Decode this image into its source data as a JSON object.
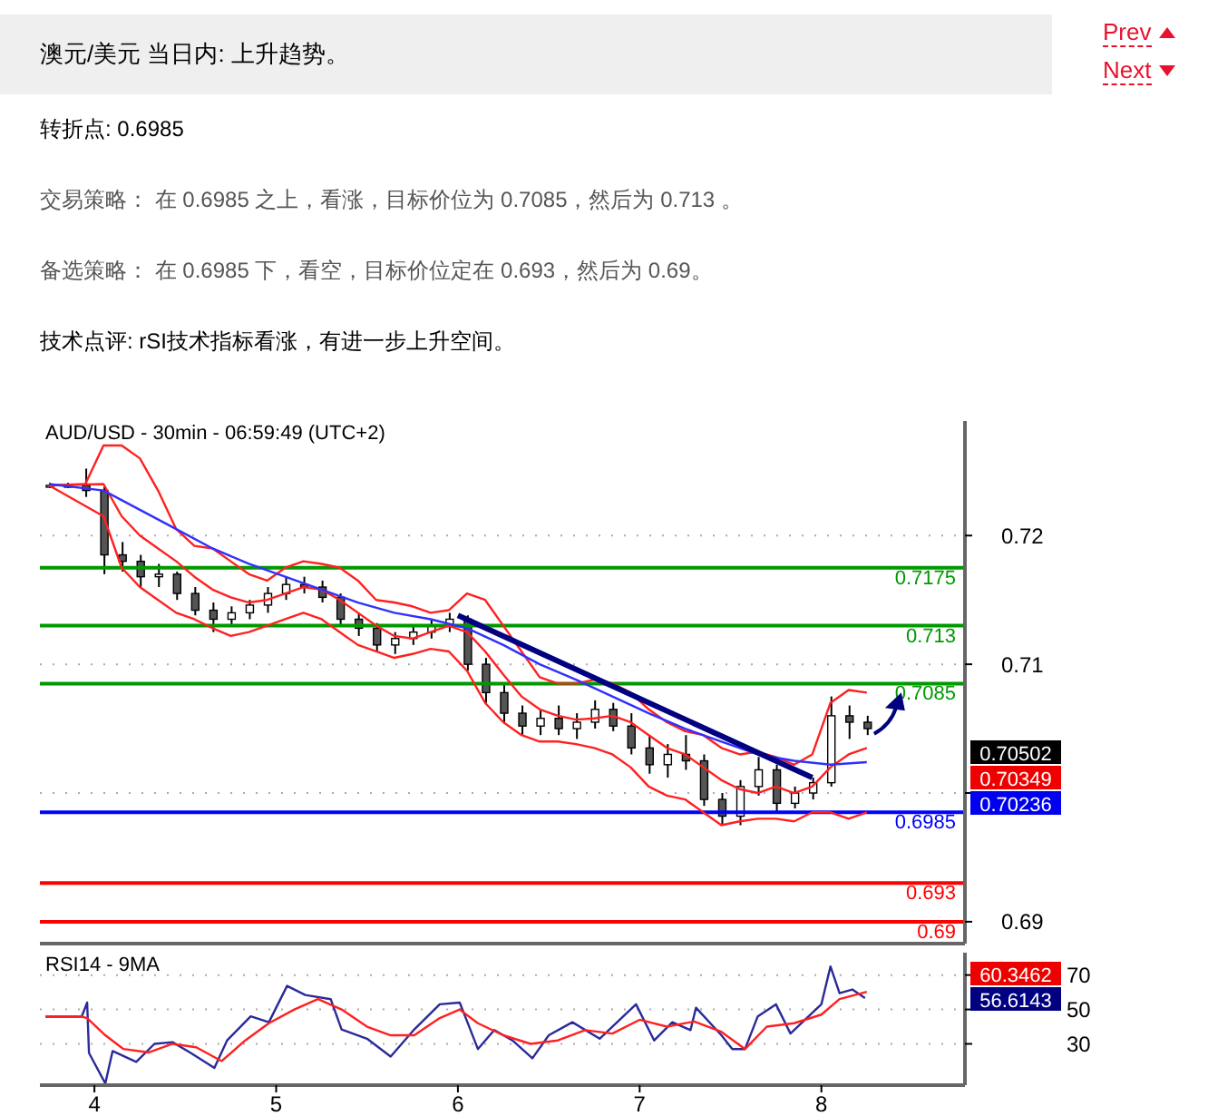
{
  "chart_data": [
    {
      "type": "candlestick",
      "title": "澳元/美元 当日内: 上升趋势。",
      "subtitle": "AUD/USD - 30min - 06:59:49 (UTC+2)",
      "annotations": [
        "Prev",
        "Next",
        "转折点: 0.6985",
        "交易策略： 在 0.6985 之上，看涨，目标价位为 0.7085，然后为 0.713 。",
        "备选策略： 在 0.6985 下，看空，目标价位定在 0.693，然后为 0.69。",
        "技术点评: rSI技术指标看涨，有进一步上升空间。",
        "0.70502",
        "0.70349",
        "0.70236"
      ],
      "x": [
        3.75,
        3.85,
        3.95,
        4.05,
        4.15,
        4.25,
        4.35,
        4.45,
        4.55,
        4.65,
        4.75,
        4.85,
        4.95,
        5.05,
        5.15,
        5.25,
        5.35,
        5.45,
        5.55,
        5.65,
        5.75,
        5.85,
        5.95,
        6.05,
        6.15,
        6.25,
        6.35,
        6.45,
        6.55,
        6.65,
        6.75,
        6.85,
        6.95,
        7.05,
        7.15,
        7.25,
        7.35,
        7.45,
        7.55,
        7.65,
        7.75,
        7.85,
        7.95,
        8.05,
        8.15,
        8.25
      ],
      "ohlc": [
        [
          0.7239,
          0.7241,
          0.7237,
          0.7239
        ],
        [
          0.7239,
          0.7241,
          0.7237,
          0.7239
        ],
        [
          0.7239,
          0.7252,
          0.723,
          0.7235
        ],
        [
          0.7235,
          0.7238,
          0.717,
          0.7185
        ],
        [
          0.7185,
          0.7195,
          0.7172,
          0.718
        ],
        [
          0.718,
          0.7185,
          0.716,
          0.7168
        ],
        [
          0.7168,
          0.7178,
          0.716,
          0.717
        ],
        [
          0.717,
          0.7172,
          0.715,
          0.7155
        ],
        [
          0.7155,
          0.716,
          0.7138,
          0.7142
        ],
        [
          0.7142,
          0.7148,
          0.7125,
          0.7135
        ],
        [
          0.7135,
          0.7145,
          0.713,
          0.714
        ],
        [
          0.714,
          0.715,
          0.7135,
          0.7146
        ],
        [
          0.7146,
          0.716,
          0.714,
          0.7155
        ],
        [
          0.7155,
          0.7168,
          0.715,
          0.7162
        ],
        [
          0.7162,
          0.7168,
          0.7155,
          0.716
        ],
        [
          0.716,
          0.7165,
          0.7148,
          0.7152
        ],
        [
          0.7152,
          0.7155,
          0.713,
          0.7135
        ],
        [
          0.7135,
          0.714,
          0.7122,
          0.7128
        ],
        [
          0.7128,
          0.7132,
          0.711,
          0.7115
        ],
        [
          0.7115,
          0.7125,
          0.7108,
          0.712
        ],
        [
          0.712,
          0.713,
          0.7115,
          0.7125
        ],
        [
          0.7125,
          0.7135,
          0.712,
          0.713
        ],
        [
          0.713,
          0.714,
          0.7125,
          0.7135
        ],
        [
          0.7135,
          0.7138,
          0.7095,
          0.71
        ],
        [
          0.71,
          0.7105,
          0.707,
          0.7078
        ],
        [
          0.7078,
          0.7085,
          0.7055,
          0.7062
        ],
        [
          0.7062,
          0.7068,
          0.7045,
          0.7052
        ],
        [
          0.7052,
          0.7065,
          0.7045,
          0.7058
        ],
        [
          0.7058,
          0.7068,
          0.7045,
          0.705
        ],
        [
          0.705,
          0.7062,
          0.7042,
          0.7055
        ],
        [
          0.7055,
          0.7072,
          0.705,
          0.7065
        ],
        [
          0.7065,
          0.707,
          0.7048,
          0.7052
        ],
        [
          0.7052,
          0.7062,
          0.703,
          0.7035
        ],
        [
          0.7035,
          0.7045,
          0.7015,
          0.7022
        ],
        [
          0.7022,
          0.7038,
          0.7012,
          0.703
        ],
        [
          0.703,
          0.7045,
          0.7018,
          0.7025
        ],
        [
          0.7025,
          0.703,
          0.699,
          0.6995
        ],
        [
          0.6995,
          0.7,
          0.6975,
          0.6982
        ],
        [
          0.6982,
          0.701,
          0.6975,
          0.7005
        ],
        [
          0.7005,
          0.7028,
          0.6998,
          0.7018
        ],
        [
          0.7018,
          0.7022,
          0.6985,
          0.6992
        ],
        [
          0.6992,
          0.7005,
          0.6988,
          0.7
        ],
        [
          0.7,
          0.7012,
          0.6995,
          0.7008
        ],
        [
          0.7008,
          0.7075,
          0.7005,
          0.706
        ],
        [
          0.706,
          0.7068,
          0.7042,
          0.7055
        ],
        [
          0.7055,
          0.706,
          0.7045,
          0.705
        ]
      ],
      "series": [
        {
          "type": "line",
          "color": "#ff2020",
          "x": [
            3.75,
            3.95,
            4.05,
            4.15,
            4.25,
            4.35,
            4.45,
            4.55,
            4.65,
            4.75,
            4.85,
            4.95,
            5.05,
            5.15,
            5.25,
            5.35,
            5.45,
            5.55,
            5.65,
            5.75,
            5.85,
            5.95,
            6.05,
            6.15,
            6.25,
            6.35,
            6.45,
            6.55,
            6.65,
            6.75,
            6.85,
            6.95,
            7.05,
            7.15,
            7.25,
            7.35,
            7.45,
            7.55,
            7.65,
            7.75,
            7.85,
            7.95,
            8.05,
            8.15,
            8.25
          ],
          "values": [
            0.7239,
            0.724,
            0.727,
            0.727,
            0.726,
            0.7235,
            0.7205,
            0.7192,
            0.719,
            0.718,
            0.717,
            0.7165,
            0.7175,
            0.718,
            0.7178,
            0.7175,
            0.7165,
            0.715,
            0.7148,
            0.7145,
            0.714,
            0.7142,
            0.7155,
            0.715,
            0.713,
            0.711,
            0.709,
            0.7085,
            0.7085,
            0.7088,
            0.7085,
            0.7078,
            0.7065,
            0.7055,
            0.7048,
            0.7045,
            0.7035,
            0.703,
            0.7032,
            0.7028,
            0.7022,
            0.703,
            0.707,
            0.708,
            0.7078
          ]
        },
        {
          "type": "line",
          "color": "#ff2020",
          "x": [
            3.75,
            4.05,
            4.15,
            4.25,
            4.35,
            4.45,
            4.55,
            4.65,
            4.75,
            4.85,
            4.95,
            5.05,
            5.15,
            5.25,
            5.35,
            5.45,
            5.55,
            5.65,
            5.75,
            5.85,
            5.95,
            6.05,
            6.15,
            6.25,
            6.35,
            6.45,
            6.55,
            6.65,
            6.75,
            6.85,
            6.95,
            7.05,
            7.15,
            7.25,
            7.35,
            7.45,
            7.55,
            7.65,
            7.75,
            7.85,
            7.95,
            8.05,
            8.15,
            8.25
          ],
          "values": [
            0.7239,
            0.724,
            0.7215,
            0.72,
            0.719,
            0.718,
            0.7168,
            0.7158,
            0.7152,
            0.7148,
            0.715,
            0.7155,
            0.716,
            0.7158,
            0.715,
            0.714,
            0.713,
            0.7122,
            0.712,
            0.7125,
            0.713,
            0.7125,
            0.711,
            0.7092,
            0.7075,
            0.7065,
            0.706,
            0.7057,
            0.7058,
            0.706,
            0.7055,
            0.7045,
            0.7035,
            0.703,
            0.702,
            0.701,
            0.7003,
            0.7,
            0.7005,
            0.7,
            0.7005,
            0.702,
            0.703,
            0.7035
          ]
        },
        {
          "type": "line",
          "color": "#ff2020",
          "x": [
            3.75,
            4.05,
            4.15,
            4.25,
            4.35,
            4.45,
            4.55,
            4.65,
            4.75,
            4.85,
            4.95,
            5.05,
            5.15,
            5.25,
            5.35,
            5.45,
            5.55,
            5.65,
            5.75,
            5.85,
            5.95,
            6.05,
            6.15,
            6.25,
            6.35,
            6.45,
            6.55,
            6.65,
            6.75,
            6.85,
            6.95,
            7.05,
            7.15,
            7.25,
            7.35,
            7.45,
            7.55,
            7.65,
            7.75,
            7.85,
            7.95,
            8.05,
            8.15,
            8.25
          ],
          "values": [
            0.7239,
            0.7215,
            0.7175,
            0.716,
            0.715,
            0.714,
            0.7135,
            0.7128,
            0.7122,
            0.7125,
            0.713,
            0.7135,
            0.714,
            0.7135,
            0.7125,
            0.7115,
            0.711,
            0.7105,
            0.7108,
            0.7112,
            0.711,
            0.7095,
            0.707,
            0.7055,
            0.7045,
            0.704,
            0.704,
            0.7038,
            0.7035,
            0.703,
            0.702,
            0.7005,
            0.6998,
            0.6995,
            0.6985,
            0.6975,
            0.6978,
            0.698,
            0.698,
            0.6978,
            0.6985,
            0.6985,
            0.698,
            0.6985
          ]
        },
        {
          "type": "line",
          "color": "#3030ff",
          "x": [
            3.75,
            4.05,
            4.25,
            4.45,
            4.65,
            4.85,
            5.05,
            5.25,
            5.45,
            5.65,
            5.85,
            6.05,
            6.25,
            6.45,
            6.65,
            6.85,
            7.05,
            7.25,
            7.45,
            7.65,
            7.85,
            8.05,
            8.25
          ],
          "values": [
            0.724,
            0.7235,
            0.722,
            0.7205,
            0.719,
            0.7178,
            0.7168,
            0.7158,
            0.7148,
            0.714,
            0.7135,
            0.7128,
            0.7115,
            0.71,
            0.7088,
            0.7075,
            0.7062,
            0.705,
            0.704,
            0.703,
            0.7025,
            0.7022,
            0.7024
          ]
        },
        {
          "type": "line",
          "color": "#000080",
          "x": [
            6.0,
            7.95
          ],
          "values": [
            0.7138,
            0.7012
          ]
        }
      ],
      "xlim": [
        3.7,
        8.79
      ],
      "xticks": [
        4,
        5,
        6,
        7,
        8
      ],
      "ylim": [
        0.6883,
        0.7289
      ],
      "yticks": [
        0.69,
        {
          "value": 0.7,
          "label": null
        },
        0.71,
        0.72
      ],
      "grid": "y",
      "tick_labels": "y",
      "ref_lines": [
        {
          "axis": "y",
          "value": 0.7175,
          "label": "0.7175",
          "color": "#009900"
        },
        {
          "axis": "y",
          "value": 0.713,
          "label": "0.713",
          "color": "#009900"
        },
        {
          "axis": "y",
          "value": 0.7085,
          "label": "0.7085",
          "color": "#009900"
        },
        {
          "axis": "y",
          "value": 0.6985,
          "label": "0.6985",
          "color": "#0000ff"
        },
        {
          "axis": "y",
          "value": 0.693,
          "label": "0.693",
          "color": "#ff0000"
        },
        {
          "axis": "y",
          "value": 0.69,
          "label": "0.69",
          "color": "#ff0000"
        }
      ]
    },
    {
      "type": "line",
      "title": "RSI14 - 9MA",
      "annotations": [
        "60.3462",
        "56.6143"
      ],
      "series": [
        {
          "color": "#2a2a9a",
          "x": [
            3.73,
            3.93,
            3.96,
            3.97,
            4.06,
            4.1,
            4.23,
            4.33,
            4.43,
            4.53,
            4.66,
            4.73,
            4.86,
            4.96,
            5.06,
            5.16,
            5.3,
            5.36,
            5.5,
            5.63,
            5.76,
            5.9,
            6.01,
            6.11,
            6.2,
            6.3,
            6.41,
            6.5,
            6.63,
            6.78,
            6.98,
            7.08,
            7.18,
            7.28,
            7.31,
            7.45,
            7.51,
            7.58,
            7.65,
            7.75,
            7.83,
            7.91,
            8.0,
            8.05,
            8.1,
            8.17,
            8.24
          ],
          "values": [
            45.8,
            45.8,
            54,
            24.7,
            7,
            25.8,
            19.5,
            30,
            31,
            24.7,
            16,
            32,
            46,
            42.6,
            63.7,
            58.4,
            56,
            38.4,
            33,
            22.6,
            38.4,
            53,
            54,
            27,
            38,
            32,
            21.6,
            35,
            42.6,
            33,
            53,
            32,
            42.6,
            38,
            51,
            35,
            27,
            27,
            46,
            53,
            36,
            44,
            53,
            75,
            59.5,
            61.6,
            56.6
          ]
        },
        {
          "color": "#ff2020",
          "x": [
            3.73,
            3.93,
            3.96,
            4.06,
            4.16,
            4.3,
            4.43,
            4.56,
            4.7,
            4.83,
            4.96,
            5.1,
            5.23,
            5.36,
            5.5,
            5.63,
            5.76,
            5.9,
            6.01,
            6.11,
            6.25,
            6.4,
            6.55,
            6.7,
            6.85,
            7.0,
            7.15,
            7.3,
            7.45,
            7.58,
            7.7,
            7.85,
            8.0,
            8.1,
            8.25
          ],
          "values": [
            45.8,
            45.8,
            45,
            35,
            27,
            25,
            30,
            28,
            20,
            32,
            42,
            50,
            56,
            50,
            40,
            35,
            35,
            45,
            50,
            42,
            35,
            30,
            32,
            38,
            36,
            44,
            40,
            43,
            37,
            27,
            40,
            42,
            47,
            56,
            60.3
          ]
        }
      ],
      "xlim": [
        3.7,
        8.79
      ],
      "xticks": [
        4,
        5,
        6,
        7,
        8
      ],
      "ylim": [
        6,
        83
      ],
      "yticks": [
        30,
        50,
        70
      ],
      "grid": "y"
    }
  ]
}
